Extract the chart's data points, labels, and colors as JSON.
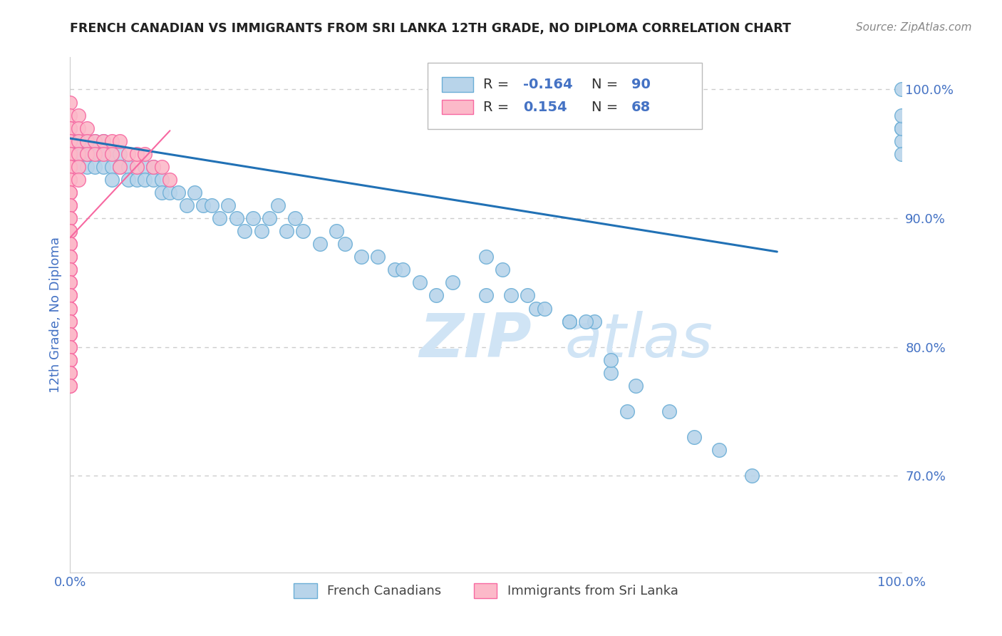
{
  "title": "FRENCH CANADIAN VS IMMIGRANTS FROM SRI LANKA 12TH GRADE, NO DIPLOMA CORRELATION CHART",
  "source": "Source: ZipAtlas.com",
  "ylabel": "12th Grade, No Diploma",
  "blue_color": "#b8d4ea",
  "blue_edge": "#6baed6",
  "pink_color": "#fcb9c9",
  "pink_edge": "#f768a1",
  "blue_line_color": "#2171b5",
  "pink_line_color": "#f768a1",
  "legend_r_blue": "-0.164",
  "legend_n_blue": "90",
  "legend_r_pink": "0.154",
  "legend_n_pink": "68",
  "grid_color": "#cccccc",
  "background_color": "#ffffff",
  "title_color": "#222222",
  "axis_label_color": "#4472c4",
  "tick_color": "#4472c4",
  "watermark_color": "#d0e4f5",
  "blue_scatter_x": [
    0.0,
    0.0,
    0.0,
    0.0,
    0.0,
    0.0,
    0.005,
    0.008,
    0.01,
    0.01,
    0.01,
    0.015,
    0.02,
    0.02,
    0.02,
    0.02,
    0.025,
    0.03,
    0.03,
    0.03,
    0.035,
    0.04,
    0.04,
    0.04,
    0.05,
    0.05,
    0.05,
    0.06,
    0.06,
    0.07,
    0.07,
    0.08,
    0.09,
    0.09,
    0.1,
    0.1,
    0.11,
    0.11,
    0.12,
    0.13,
    0.14,
    0.15,
    0.16,
    0.17,
    0.18,
    0.19,
    0.2,
    0.21,
    0.22,
    0.23,
    0.24,
    0.25,
    0.26,
    0.27,
    0.28,
    0.3,
    0.32,
    0.33,
    0.35,
    0.37,
    0.39,
    0.4,
    0.42,
    0.44,
    0.46,
    0.5,
    0.53,
    0.56,
    0.6,
    0.63,
    0.65,
    0.67,
    0.5,
    0.52,
    0.55,
    0.57,
    0.6,
    0.62,
    0.65,
    0.68,
    0.72,
    0.75,
    0.78,
    0.82,
    1.0,
    1.0,
    1.0,
    1.0,
    1.0,
    1.0
  ],
  "blue_scatter_y": [
    0.96,
    0.97,
    0.97,
    0.96,
    0.95,
    0.94,
    0.96,
    0.95,
    0.95,
    0.94,
    0.96,
    0.95,
    0.96,
    0.95,
    0.94,
    0.95,
    0.95,
    0.96,
    0.95,
    0.94,
    0.95,
    0.95,
    0.94,
    0.96,
    0.95,
    0.94,
    0.93,
    0.95,
    0.94,
    0.94,
    0.93,
    0.93,
    0.94,
    0.93,
    0.93,
    0.94,
    0.93,
    0.92,
    0.92,
    0.92,
    0.91,
    0.92,
    0.91,
    0.91,
    0.9,
    0.91,
    0.9,
    0.89,
    0.9,
    0.89,
    0.9,
    0.91,
    0.89,
    0.9,
    0.89,
    0.88,
    0.89,
    0.88,
    0.87,
    0.87,
    0.86,
    0.86,
    0.85,
    0.84,
    0.85,
    0.84,
    0.84,
    0.83,
    0.82,
    0.82,
    0.78,
    0.75,
    0.87,
    0.86,
    0.84,
    0.83,
    0.82,
    0.82,
    0.79,
    0.77,
    0.75,
    0.73,
    0.72,
    0.7,
    0.97,
    0.96,
    0.95,
    0.97,
    0.98,
    1.0
  ],
  "pink_scatter_x": [
    0.0,
    0.0,
    0.0,
    0.0,
    0.0,
    0.0,
    0.0,
    0.0,
    0.0,
    0.0,
    0.0,
    0.0,
    0.0,
    0.0,
    0.0,
    0.0,
    0.0,
    0.0,
    0.0,
    0.0,
    0.0,
    0.0,
    0.0,
    0.0,
    0.0,
    0.0,
    0.0,
    0.0,
    0.0,
    0.0,
    0.0,
    0.0,
    0.0,
    0.0,
    0.0,
    0.0,
    0.0,
    0.0,
    0.0,
    0.0,
    0.0,
    0.0,
    0.0,
    0.0,
    0.01,
    0.01,
    0.01,
    0.01,
    0.01,
    0.01,
    0.02,
    0.02,
    0.02,
    0.03,
    0.03,
    0.04,
    0.04,
    0.05,
    0.05,
    0.06,
    0.06,
    0.07,
    0.08,
    0.08,
    0.09,
    0.1,
    0.11,
    0.12
  ],
  "pink_scatter_y": [
    0.99,
    0.98,
    0.97,
    0.97,
    0.96,
    0.96,
    0.95,
    0.95,
    0.94,
    0.94,
    0.93,
    0.93,
    0.92,
    0.92,
    0.91,
    0.91,
    0.9,
    0.9,
    0.89,
    0.89,
    0.88,
    0.88,
    0.87,
    0.87,
    0.86,
    0.86,
    0.85,
    0.85,
    0.84,
    0.84,
    0.83,
    0.83,
    0.82,
    0.82,
    0.81,
    0.81,
    0.8,
    0.8,
    0.79,
    0.79,
    0.78,
    0.78,
    0.77,
    0.77,
    0.98,
    0.97,
    0.96,
    0.95,
    0.94,
    0.93,
    0.97,
    0.96,
    0.95,
    0.96,
    0.95,
    0.96,
    0.95,
    0.96,
    0.95,
    0.96,
    0.94,
    0.95,
    0.94,
    0.95,
    0.95,
    0.94,
    0.94,
    0.93
  ],
  "xlim": [
    0.0,
    1.0
  ],
  "ylim": [
    0.625,
    1.025
  ],
  "ytick_vals": [
    0.7,
    0.8,
    0.9,
    1.0
  ],
  "ytick_labels": [
    "70.0%",
    "80.0%",
    "90.0%",
    "100.0%"
  ],
  "xtick_vals": [
    0.0,
    1.0
  ],
  "xtick_labels": [
    "0.0%",
    "100.0%"
  ],
  "blue_regline_x": [
    0.0,
    0.85
  ],
  "blue_regline_y": [
    0.962,
    0.874
  ],
  "pink_regline_x": [
    0.0,
    0.12
  ],
  "pink_regline_y": [
    0.885,
    0.968
  ]
}
